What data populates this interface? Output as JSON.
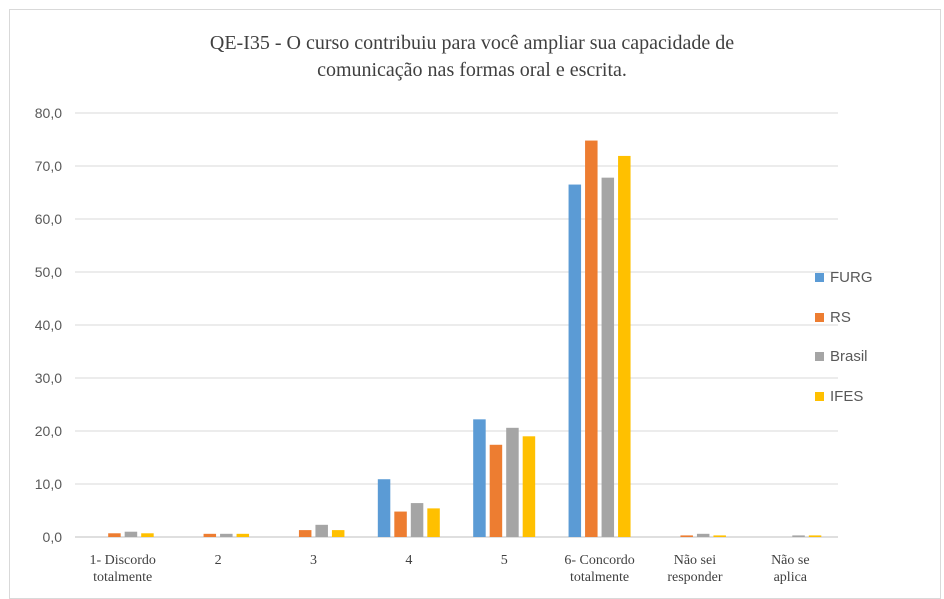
{
  "chart_data": {
    "type": "bar",
    "title_lines": [
      "QE-I35  - O curso contribuiu  para você ampliar  sua capacidade de",
      "comunicação nas formas oral e escrita."
    ],
    "categories": [
      [
        "1- Discordo",
        "totalmente"
      ],
      [
        "2"
      ],
      [
        "3"
      ],
      [
        "4"
      ],
      [
        "5"
      ],
      [
        "6- Concordo",
        "totalmente"
      ],
      [
        "Não sei",
        "responder"
      ],
      [
        "Não se",
        "aplica"
      ]
    ],
    "series": [
      {
        "name": "FURG",
        "color": "#5B9BD5",
        "values": [
          0.0,
          0.0,
          0.0,
          10.9,
          22.2,
          66.5,
          0.0,
          0.0
        ]
      },
      {
        "name": "RS",
        "color": "#ED7D31",
        "values": [
          0.7,
          0.6,
          1.3,
          4.8,
          17.4,
          74.8,
          0.3,
          0.0
        ]
      },
      {
        "name": "Brasil",
        "color": "#A5A5A5",
        "values": [
          1.0,
          0.6,
          2.3,
          6.4,
          20.6,
          67.8,
          0.6,
          0.3
        ]
      },
      {
        "name": "IFES",
        "color": "#FFC000",
        "values": [
          0.7,
          0.6,
          1.3,
          5.4,
          19.0,
          71.9,
          0.3,
          0.3
        ]
      }
    ],
    "yticks": [
      "0,0",
      "10,0",
      "20,0",
      "30,0",
      "40,0",
      "50,0",
      "60,0",
      "70,0",
      "80,0"
    ],
    "ylim": [
      0,
      80
    ],
    "grid": "horizontal",
    "legend_position": "right"
  }
}
